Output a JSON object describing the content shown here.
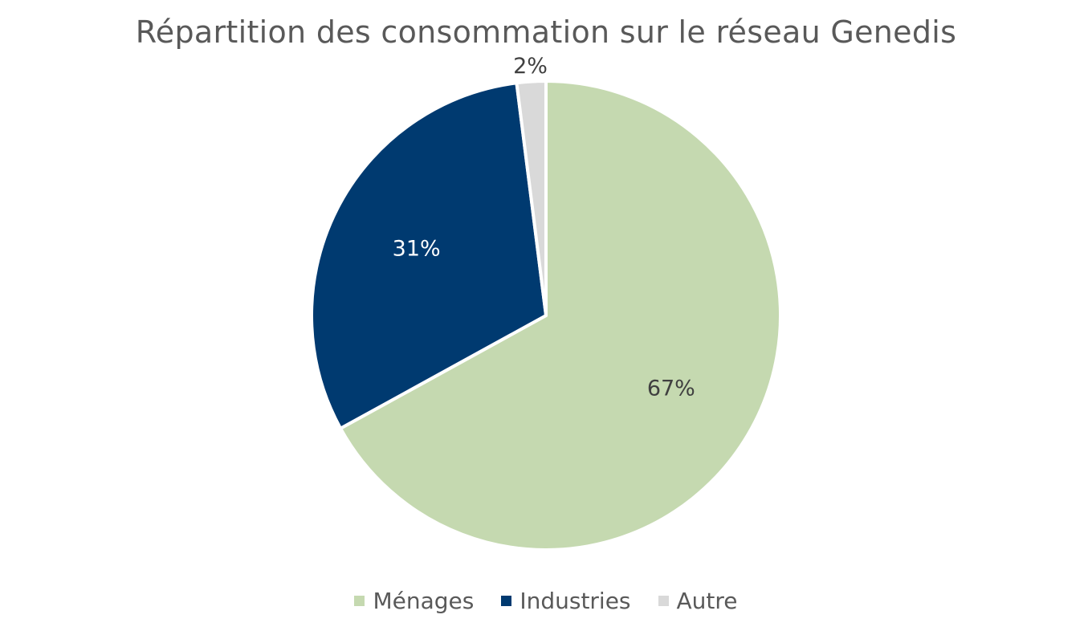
{
  "chart_data": {
    "type": "pie",
    "title": "Répartition des consommation sur le réseau Genedis",
    "categories": [
      "Ménages",
      "Industries",
      "Autre"
    ],
    "values": [
      67,
      31,
      2
    ],
    "labels": [
      "67%",
      "31%",
      "2%"
    ],
    "colors": [
      "#c5d9b0",
      "#003a70",
      "#d9d9d9"
    ],
    "label_colors": [
      "#404040",
      "#ffffff",
      "#404040"
    ],
    "legend_position": "bottom",
    "start": "top, clockwise"
  }
}
